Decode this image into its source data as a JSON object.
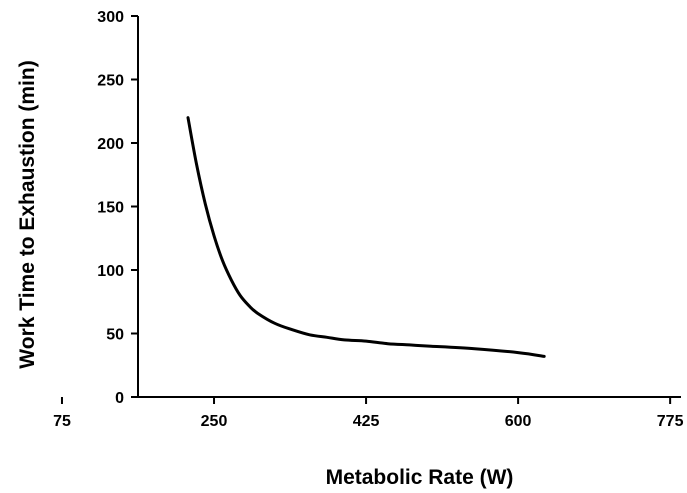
{
  "chart_data": {
    "type": "line",
    "title": "",
    "xlabel": "Metabolic Rate (W)",
    "ylabel": "Work Time to Exhaustion (min)",
    "xlim": [
      162.5,
      787.5
    ],
    "ylim": [
      0,
      300
    ],
    "xticks": [
      75,
      250,
      425,
      600,
      775
    ],
    "yticks": [
      0,
      50,
      100,
      150,
      200,
      250,
      300
    ],
    "grid": false,
    "legend": "none",
    "series": [
      {
        "color": "#000000",
        "x": [
          220,
          230,
          240,
          250,
          260,
          270,
          280,
          290,
          300,
          320,
          340,
          360,
          380,
          400,
          425,
          450,
          475,
          500,
          550,
          600,
          630
        ],
        "y": [
          220,
          183,
          152,
          127,
          107,
          92,
          80,
          72,
          66,
          58,
          53,
          49,
          47,
          45,
          44,
          42,
          41,
          40,
          38,
          35,
          32
        ]
      }
    ]
  }
}
